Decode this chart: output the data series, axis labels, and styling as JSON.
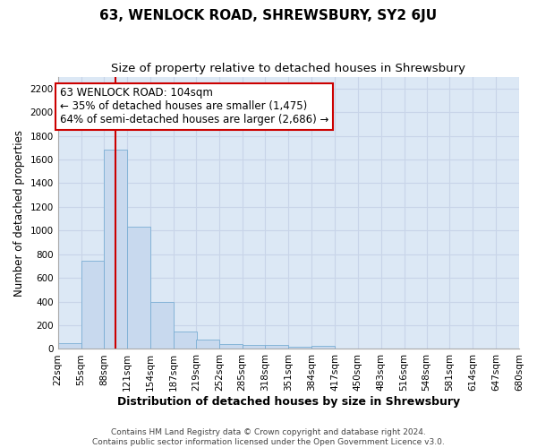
{
  "title": "63, WENLOCK ROAD, SHREWSBURY, SY2 6JU",
  "subtitle": "Size of property relative to detached houses in Shrewsbury",
  "xlabel": "Distribution of detached houses by size in Shrewsbury",
  "ylabel": "Number of detached properties",
  "bin_edges": [
    22,
    55,
    88,
    121,
    154,
    187,
    219,
    252,
    285,
    318,
    351,
    384,
    417,
    450,
    483,
    516,
    548,
    581,
    614,
    647,
    680
  ],
  "bar_heights": [
    50,
    745,
    1680,
    1030,
    400,
    150,
    80,
    45,
    35,
    30,
    20,
    25,
    0,
    0,
    0,
    0,
    0,
    0,
    0,
    0
  ],
  "bar_color": "#c8d9ee",
  "bar_edge_color": "#7aaed4",
  "grid_color": "#c8d4e8",
  "background_color": "#dce8f5",
  "property_size": 104,
  "red_line_color": "#cc0000",
  "annotation_text": "63 WENLOCK ROAD: 104sqm\n← 35% of detached houses are smaller (1,475)\n64% of semi-detached houses are larger (2,686) →",
  "annotation_box_color": "#ffffff",
  "annotation_box_edge_color": "#cc0000",
  "ylim": [
    0,
    2300
  ],
  "yticks": [
    0,
    200,
    400,
    600,
    800,
    1000,
    1200,
    1400,
    1600,
    1800,
    2000,
    2200
  ],
  "footer_text": "Contains HM Land Registry data © Crown copyright and database right 2024.\nContains public sector information licensed under the Open Government Licence v3.0.",
  "title_fontsize": 11,
  "subtitle_fontsize": 9.5,
  "xlabel_fontsize": 9,
  "ylabel_fontsize": 8.5,
  "tick_fontsize": 7.5,
  "annotation_fontsize": 8.5,
  "footer_fontsize": 6.5
}
